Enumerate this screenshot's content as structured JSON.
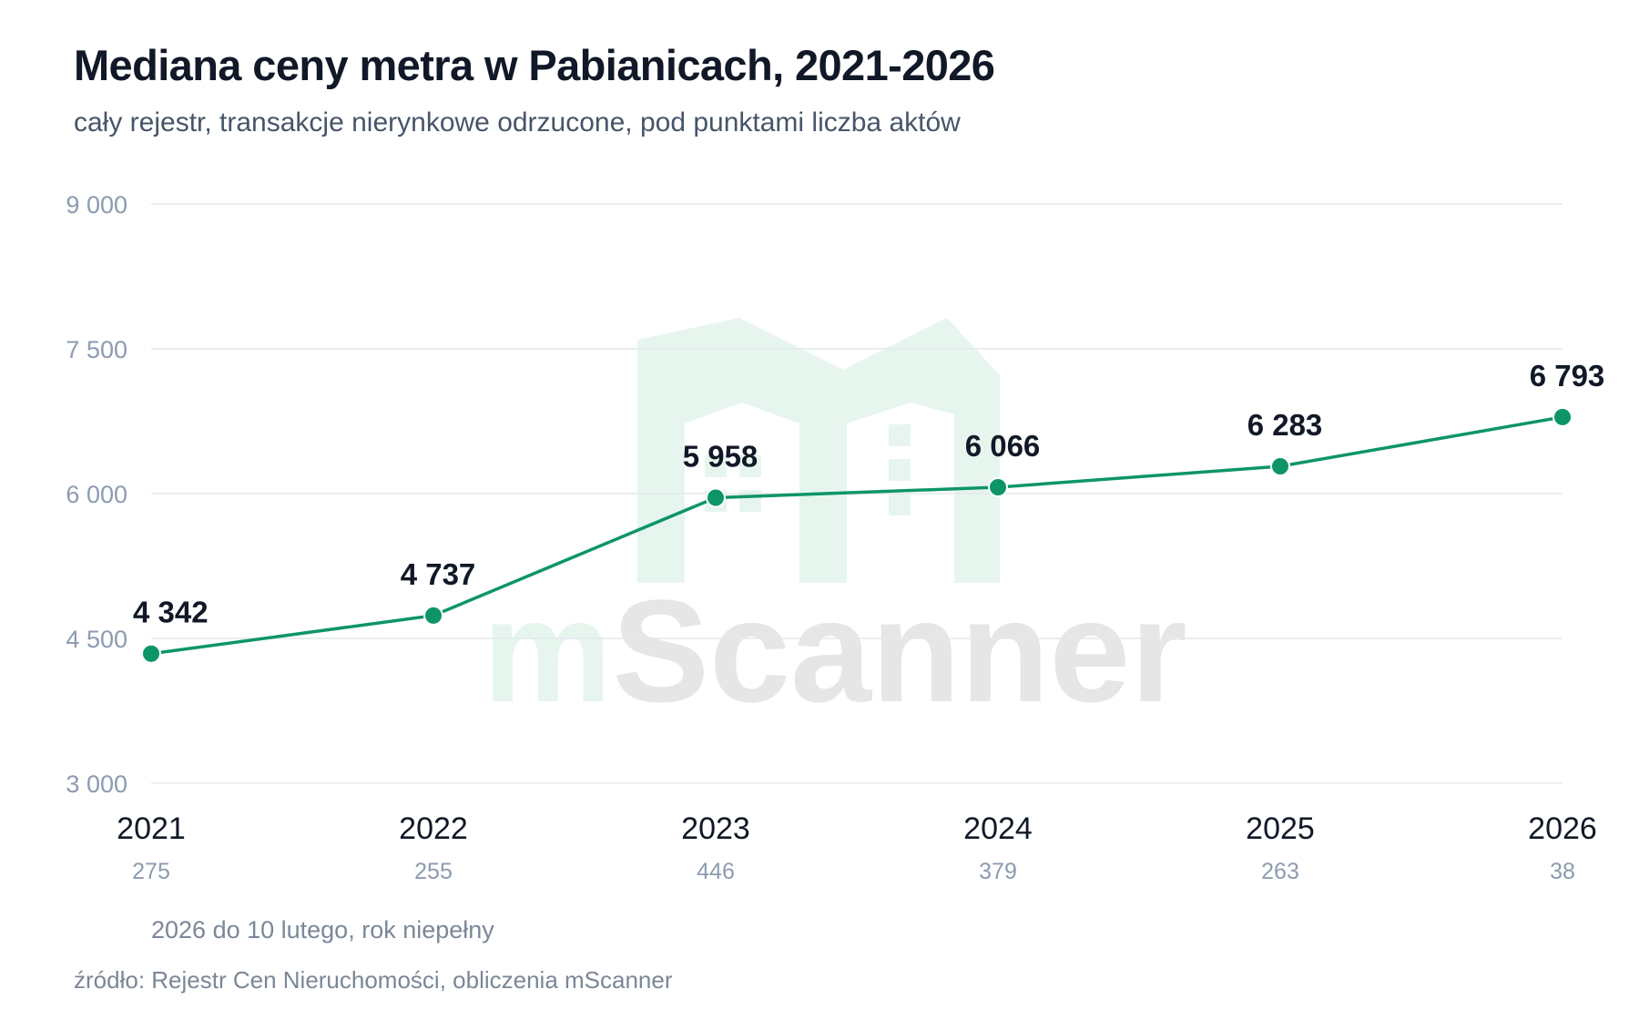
{
  "header": {
    "title": "Mediana ceny metra w Pabianicach, 2021-2026",
    "subtitle": "cały rejestr, transakcje nierynkowe odrzucone, pod punktami liczba aktów"
  },
  "watermark": {
    "text": "mScanner",
    "icon": "house-m-logo-icon",
    "colors": {
      "logo": "#e6f6ee",
      "text_m": "#e6f6ee",
      "text_rest": "#e6e6e6"
    }
  },
  "chart_data": {
    "type": "line",
    "title": "Mediana ceny metra w Pabianicach, 2021-2026",
    "subtitle": "cały rejestr, transakcje nierynkowe odrzucone, pod punktami liczba aktów",
    "x": [
      "2021",
      "2022",
      "2023",
      "2024",
      "2025",
      "2026"
    ],
    "series": [
      {
        "values": [
          4342,
          4737,
          5958,
          6066,
          6283,
          6793
        ],
        "labels": [
          "4 342",
          "4 737",
          "5 958",
          "6 066",
          "6 283",
          "6 793"
        ]
      }
    ],
    "counts": [
      "275",
      "255",
      "446",
      "379",
      "263",
      "38"
    ],
    "ylim": [
      3000,
      9000
    ],
    "yticks": [
      3000,
      4500,
      6000,
      7500,
      9000
    ],
    "ytick_labels": [
      "3 000",
      "4 500",
      "6 000",
      "7 500",
      "9 000"
    ],
    "grid": true,
    "legend": "none",
    "colors": {
      "line": "#0d9568",
      "grid": "#e3e7ee",
      "axis_text": "#8c9bb0",
      "label_text": "#111827",
      "count_text": "#8c9bb0"
    }
  },
  "footer": {
    "note": "2026 do 10 lutego, rok niepełny",
    "source": "źródło: Rejestr Cen Nieruchomości, obliczenia mScanner"
  }
}
